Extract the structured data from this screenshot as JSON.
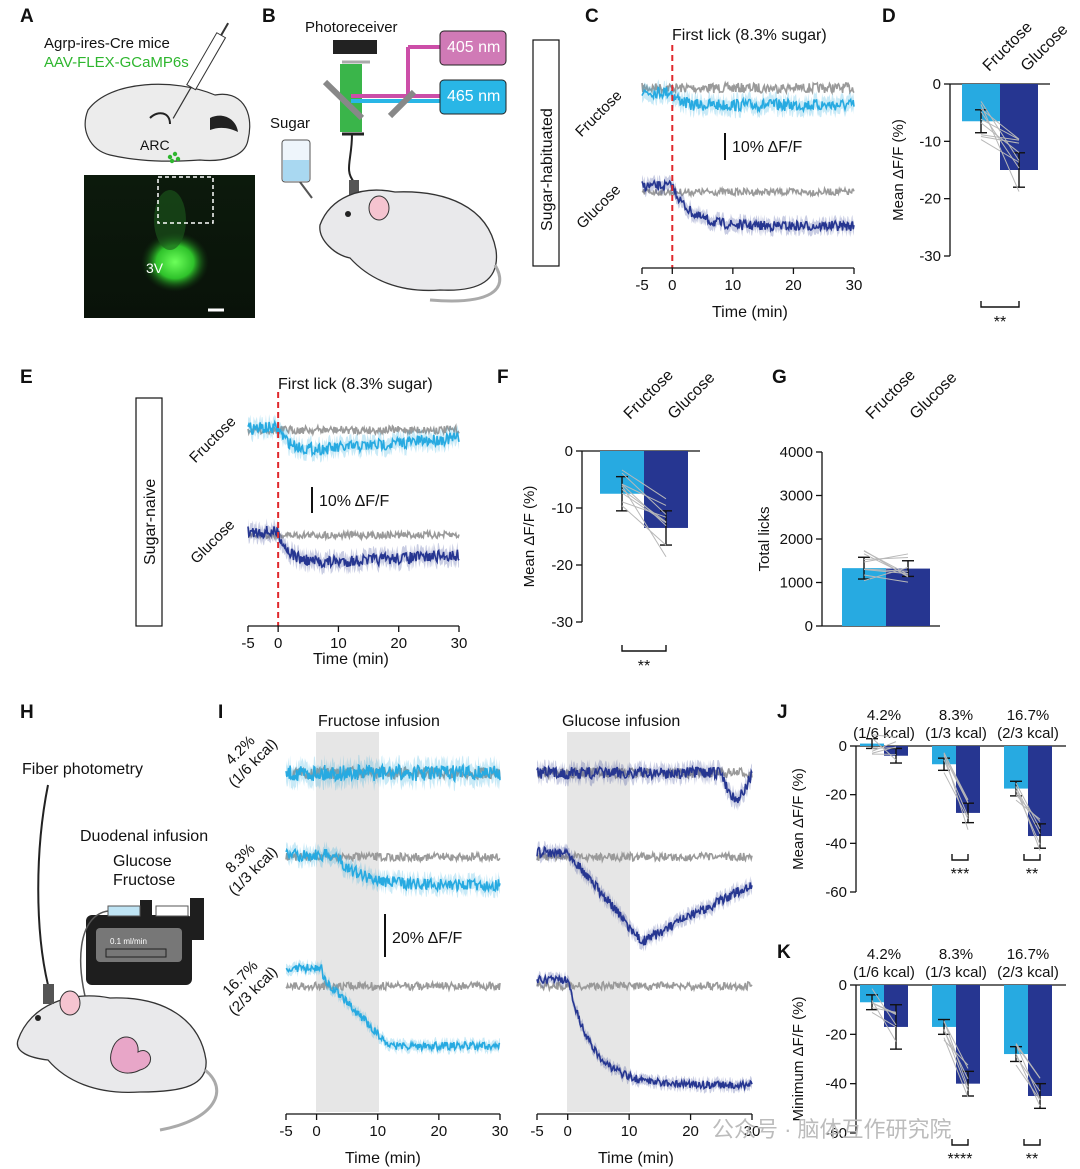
{
  "colors": {
    "fructose": "#27aae1",
    "glucose": "#263691",
    "control": "#9a9a9a",
    "shade": "#e6e6e6",
    "marker": "#e0282c",
    "gfp": "#3bd23b"
  },
  "panels": [
    "A",
    "B",
    "C",
    "D",
    "E",
    "F",
    "G",
    "H",
    "I",
    "J",
    "K"
  ],
  "panelA": {
    "line1": "Agrp-ires-Cre mice",
    "line2": "AAV-FLEX-GCaMP6s",
    "arc": "ARC",
    "v3": "3V"
  },
  "panelB": {
    "photoreceiver": "Photoreceiver",
    "laser1": "405 nm",
    "laser2": "465 nm",
    "sugar": "Sugar"
  },
  "panelC": {
    "condition": "Sugar-habituated",
    "marker": "First lick (8.3% sugar)",
    "row1": "Fructose",
    "row2": "Glucose",
    "scale": "10% ΔF/F",
    "xlabel": "Time (min)",
    "xticks": [
      "-5",
      "0",
      "10",
      "20",
      "30"
    ]
  },
  "panelE": {
    "condition": "Sugar-naive",
    "marker": "First lick (8.3% sugar)",
    "row1": "Fructose",
    "row2": "Glucose",
    "scale": "10% ΔF/F",
    "xlabel": "Time (min)",
    "xticks": [
      "-5",
      "0",
      "10",
      "20",
      "30"
    ]
  },
  "panelH": {
    "photometry": "Fiber photometry",
    "infusion": "Duodenal infusion",
    "sugar1": "Glucose",
    "sugar2": "Fructose",
    "pump": "0.1 ml/min"
  },
  "panelI": {
    "title1": "Fructose infusion",
    "title2": "Glucose infusion",
    "rows": [
      {
        "pct": "4.2%",
        "kcal": "(1/6 kcal)"
      },
      {
        "pct": "8.3%",
        "kcal": "(1/3 kcal)"
      },
      {
        "pct": "16.7%",
        "kcal": "(2/3 kcal)"
      }
    ],
    "scale": "20% ΔF/F",
    "xlabel": "Time (min)",
    "xticks": [
      "-5",
      "0",
      "10",
      "20",
      "30"
    ]
  },
  "watermark": "公众号 · 脑体互作研究院",
  "chart_data": [
    {
      "panel": "D",
      "type": "bar",
      "categories": [
        "Fructose",
        "Glucose"
      ],
      "values": [
        -6.5,
        -15
      ],
      "errors": [
        2,
        3
      ],
      "ylabel": "Mean ΔF/F (%)",
      "ylim": [
        -30,
        0
      ],
      "yticks": [
        "0",
        "-10",
        "-20",
        "-30"
      ],
      "significance": "**"
    },
    {
      "panel": "F",
      "type": "bar",
      "categories": [
        "Fructose",
        "Glucose"
      ],
      "values": [
        -7.5,
        -13.5
      ],
      "errors": [
        3,
        3
      ],
      "ylabel": "Mean ΔF/F (%)",
      "ylim": [
        -30,
        0
      ],
      "yticks": [
        "0",
        "-10",
        "-20",
        "-30"
      ],
      "significance": "**"
    },
    {
      "panel": "G",
      "type": "bar",
      "categories": [
        "Fructose",
        "Glucose"
      ],
      "values": [
        1330,
        1320
      ],
      "errors": [
        250,
        180
      ],
      "ylabel": "Total licks",
      "ylim": [
        0,
        4000
      ],
      "yticks": [
        "0",
        "1000",
        "2000",
        "3000",
        "4000"
      ]
    },
    {
      "panel": "J",
      "type": "bar",
      "groups": [
        {
          "pct": "4.2%",
          "kcal": "(1/6 kcal)"
        },
        {
          "pct": "8.3%",
          "kcal": "(1/3 kcal)"
        },
        {
          "pct": "16.7%",
          "kcal": "(2/3 kcal)"
        }
      ],
      "series": [
        {
          "name": "Fructose",
          "values": [
            1,
            -7.5,
            -17.5
          ],
          "errors": [
            2,
            2.5,
            3
          ]
        },
        {
          "name": "Glucose",
          "values": [
            -4,
            -27.5,
            -37
          ],
          "errors": [
            3,
            4,
            5
          ]
        }
      ],
      "ylabel": "Mean ΔF/F (%)",
      "ylim": [
        -60,
        0
      ],
      "yticks": [
        "0",
        "-20",
        "-40",
        "-60"
      ],
      "significance": [
        "",
        "***",
        "**"
      ]
    },
    {
      "panel": "K",
      "type": "bar",
      "groups": [
        {
          "pct": "4.2%",
          "kcal": "(1/6 kcal)"
        },
        {
          "pct": "8.3%",
          "kcal": "(1/3 kcal)"
        },
        {
          "pct": "16.7%",
          "kcal": "(2/3 kcal)"
        }
      ],
      "series": [
        {
          "name": "Fructose",
          "values": [
            -7,
            -17,
            -28
          ],
          "errors": [
            3,
            3,
            3
          ]
        },
        {
          "name": "Glucose",
          "values": [
            -17,
            -40,
            -45
          ],
          "errors": [
            9,
            5,
            5
          ]
        }
      ],
      "ylabel": "Minimum ΔF/F (%)",
      "ylim": [
        -60,
        0
      ],
      "yticks": [
        "0",
        "-20",
        "-40",
        "-60"
      ],
      "significance": [
        "",
        "****",
        "**"
      ]
    }
  ]
}
